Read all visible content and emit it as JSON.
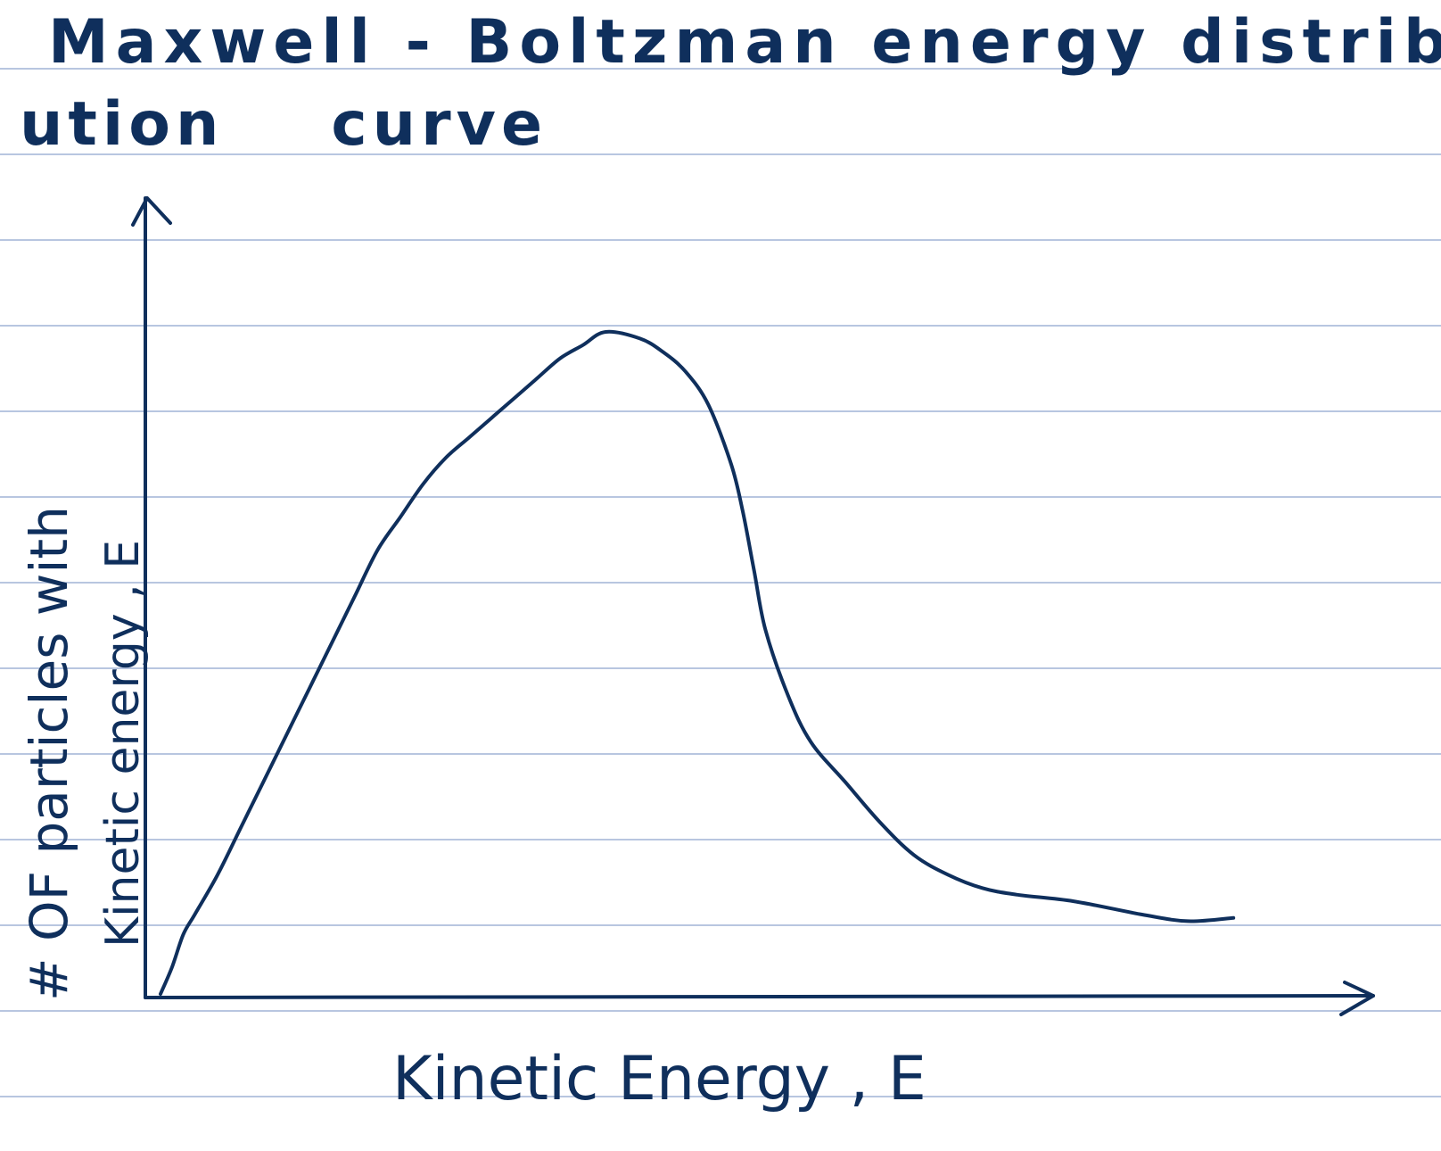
{
  "title": {
    "line1": "Maxwell - Boltzman energy distrib",
    "line2a": "ution",
    "line2b": "curve"
  },
  "colors": {
    "ink": "#0f2f5c",
    "rule": "#b8c6e0",
    "paper": "#ffffff"
  },
  "chart_data": {
    "type": "line",
    "xlabel": "Kinetic Energy , E",
    "ylabel_line1": "# OF particles with",
    "ylabel_line2": "Kinetic energy , E",
    "xlim": [
      0,
      100
    ],
    "ylim": [
      0,
      100
    ],
    "grid": false,
    "ticks": "none",
    "series": [
      {
        "values_xy": [
          [
            0,
            0
          ],
          [
            1,
            4
          ],
          [
            2,
            9
          ],
          [
            3,
            12
          ],
          [
            5,
            18
          ],
          [
            7,
            25
          ],
          [
            9,
            32
          ],
          [
            11,
            39
          ],
          [
            13,
            46
          ],
          [
            15,
            53
          ],
          [
            17,
            60
          ],
          [
            19,
            67
          ],
          [
            21,
            72
          ],
          [
            23,
            77
          ],
          [
            25,
            81
          ],
          [
            27,
            84
          ],
          [
            29,
            87
          ],
          [
            31,
            90
          ],
          [
            33,
            93
          ],
          [
            35,
            96
          ],
          [
            37,
            98
          ],
          [
            39,
            100
          ],
          [
            42,
            99
          ],
          [
            44,
            97
          ],
          [
            46,
            94
          ],
          [
            48,
            89
          ],
          [
            50,
            80
          ],
          [
            51,
            73
          ],
          [
            52,
            64
          ],
          [
            53,
            55
          ],
          [
            55,
            45
          ],
          [
            57,
            38
          ],
          [
            60,
            32
          ],
          [
            63,
            26
          ],
          [
            66,
            21
          ],
          [
            69,
            18
          ],
          [
            72,
            16
          ],
          [
            75,
            15
          ],
          [
            80,
            14
          ],
          [
            86,
            12
          ],
          [
            90,
            11
          ],
          [
            94,
            11.5
          ]
        ]
      }
    ]
  }
}
